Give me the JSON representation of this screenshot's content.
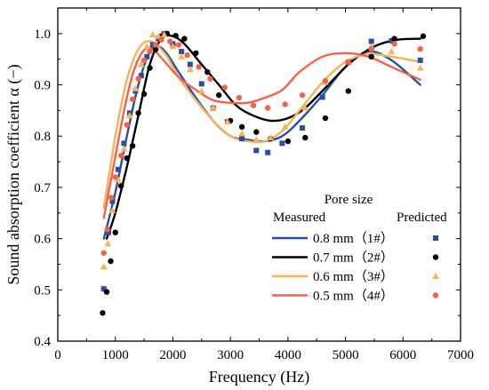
{
  "chart_data": {
    "type": "line",
    "title": "",
    "xlabel": "Frequency (Hz)",
    "ylabel": "Sound absorption coefficient α (−)",
    "xlim": [
      0,
      7000
    ],
    "ylim": [
      0.4,
      1.05
    ],
    "xticks": [
      0,
      1000,
      2000,
      3000,
      4000,
      5000,
      6000,
      7000
    ],
    "yticks": [
      0.4,
      0.5,
      0.6,
      0.7,
      0.8,
      0.9,
      1.0
    ],
    "xtick_labels": [
      "0",
      "1000",
      "2000",
      "3000",
      "4000",
      "5000",
      "6000",
      "7000"
    ],
    "ytick_labels": [
      "0.4",
      "0.5",
      "0.6",
      "0.7",
      "0.8",
      "0.9",
      "1.0"
    ],
    "grid": false,
    "legend": {
      "placement": "bottom-right",
      "title": "Pore size",
      "measured_header": "Measured",
      "predicted_header": "Predicted"
    },
    "series": [
      {
        "name": "0.8 mm（1#）",
        "color": "#2a4ea3",
        "marker": "square",
        "curve": [
          [
            800,
            0.6
          ],
          [
            1000,
            0.69
          ],
          [
            1200,
            0.8
          ],
          [
            1400,
            0.9
          ],
          [
            1600,
            0.965
          ],
          [
            1750,
            0.975
          ],
          [
            1900,
            0.96
          ],
          [
            2100,
            0.925
          ],
          [
            2400,
            0.875
          ],
          [
            2700,
            0.83
          ],
          [
            3000,
            0.8
          ],
          [
            3300,
            0.793
          ],
          [
            3600,
            0.79
          ],
          [
            3900,
            0.8
          ],
          [
            4200,
            0.83
          ],
          [
            4600,
            0.88
          ],
          [
            5000,
            0.935
          ],
          [
            5400,
            0.965
          ],
          [
            5800,
            0.948
          ],
          [
            6300,
            0.9
          ]
        ],
        "points": [
          [
            800,
            0.502
          ],
          [
            880,
            0.612
          ],
          [
            950,
            0.673
          ],
          [
            1050,
            0.735
          ],
          [
            1150,
            0.786
          ],
          [
            1250,
            0.845
          ],
          [
            1350,
            0.888
          ],
          [
            1450,
            0.918
          ],
          [
            1550,
            0.955
          ],
          [
            1650,
            0.978
          ],
          [
            1750,
            0.99
          ],
          [
            1850,
            1.0
          ],
          [
            2000,
            0.98
          ],
          [
            2150,
            0.965
          ],
          [
            2300,
            0.94
          ],
          [
            2500,
            0.902
          ],
          [
            2700,
            0.855
          ],
          [
            2950,
            0.828
          ],
          [
            3200,
            0.795
          ],
          [
            3450,
            0.772
          ],
          [
            3650,
            0.768
          ],
          [
            3900,
            0.786
          ],
          [
            4250,
            0.816
          ],
          [
            4600,
            0.876
          ],
          [
            5050,
            0.944
          ],
          [
            5450,
            0.985
          ],
          [
            5800,
            0.986
          ],
          [
            6300,
            0.948
          ]
        ]
      },
      {
        "name": "0.7 mm（2#）",
        "color": "#000000",
        "marker": "circle",
        "curve": [
          [
            850,
            0.6
          ],
          [
            1000,
            0.65
          ],
          [
            1200,
            0.74
          ],
          [
            1400,
            0.84
          ],
          [
            1600,
            0.94
          ],
          [
            1800,
            0.99
          ],
          [
            2000,
            0.995
          ],
          [
            2200,
            0.98
          ],
          [
            2500,
            0.94
          ],
          [
            2800,
            0.9
          ],
          [
            3100,
            0.86
          ],
          [
            3400,
            0.84
          ],
          [
            3700,
            0.83
          ],
          [
            4000,
            0.835
          ],
          [
            4300,
            0.855
          ],
          [
            4700,
            0.9
          ],
          [
            5100,
            0.945
          ],
          [
            5500,
            0.975
          ],
          [
            5900,
            0.988
          ],
          [
            6300,
            0.99
          ]
        ],
        "points": [
          [
            780,
            0.455
          ],
          [
            850,
            0.496
          ],
          [
            920,
            0.556
          ],
          [
            1000,
            0.612
          ],
          [
            1100,
            0.703
          ],
          [
            1200,
            0.757
          ],
          [
            1300,
            0.781
          ],
          [
            1400,
            0.845
          ],
          [
            1500,
            0.882
          ],
          [
            1600,
            0.933
          ],
          [
            1700,
            0.969
          ],
          [
            1800,
            0.995
          ],
          [
            1900,
            1.0
          ],
          [
            2050,
            0.996
          ],
          [
            2200,
            0.99
          ],
          [
            2400,
            0.962
          ],
          [
            2600,
            0.925
          ],
          [
            2800,
            0.88
          ],
          [
            3000,
            0.83
          ],
          [
            3200,
            0.818
          ],
          [
            3450,
            0.808
          ],
          [
            3700,
            0.795
          ],
          [
            4000,
            0.79
          ],
          [
            4300,
            0.797
          ],
          [
            4650,
            0.835
          ],
          [
            5050,
            0.888
          ],
          [
            5450,
            0.955
          ],
          [
            5850,
            0.99
          ],
          [
            6350,
            0.995
          ]
        ]
      },
      {
        "name": "0.6 mm（3#）",
        "color": "#f5b35a",
        "marker": "triangle",
        "curve": [
          [
            800,
            0.66
          ],
          [
            900,
            0.73
          ],
          [
            1000,
            0.8
          ],
          [
            1100,
            0.86
          ],
          [
            1200,
            0.91
          ],
          [
            1300,
            0.945
          ],
          [
            1400,
            0.97
          ],
          [
            1500,
            0.983
          ],
          [
            1600,
            0.985
          ],
          [
            1700,
            0.98
          ],
          [
            1900,
            0.955
          ],
          [
            2100,
            0.915
          ],
          [
            2400,
            0.87
          ],
          [
            2700,
            0.83
          ],
          [
            3000,
            0.8
          ],
          [
            3300,
            0.79
          ],
          [
            3600,
            0.79
          ],
          [
            3900,
            0.81
          ],
          [
            4200,
            0.85
          ],
          [
            4600,
            0.905
          ],
          [
            5000,
            0.945
          ],
          [
            5400,
            0.96
          ],
          [
            5800,
            0.955
          ],
          [
            6300,
            0.945
          ]
        ],
        "points": [
          [
            800,
            0.545
          ],
          [
            870,
            0.59
          ],
          [
            950,
            0.655
          ],
          [
            1050,
            0.715
          ],
          [
            1150,
            0.775
          ],
          [
            1250,
            0.84
          ],
          [
            1350,
            0.893
          ],
          [
            1450,
            0.94
          ],
          [
            1550,
            0.975
          ],
          [
            1650,
            0.998
          ],
          [
            1750,
            0.995
          ],
          [
            1850,
            0.998
          ],
          [
            2000,
            0.975
          ],
          [
            2150,
            0.955
          ],
          [
            2300,
            0.93
          ],
          [
            2500,
            0.888
          ],
          [
            2700,
            0.856
          ],
          [
            2950,
            0.828
          ],
          [
            3200,
            0.805
          ],
          [
            3450,
            0.793
          ],
          [
            3700,
            0.797
          ],
          [
            3950,
            0.818
          ],
          [
            4300,
            0.855
          ],
          [
            4650,
            0.905
          ],
          [
            5050,
            0.946
          ],
          [
            5450,
            0.975
          ],
          [
            5800,
            0.965
          ],
          [
            6300,
            0.933
          ]
        ]
      },
      {
        "name": "0.5 mm（4#）",
        "color": "#f0644a",
        "marker": "circle",
        "curve": [
          [
            800,
            0.64
          ],
          [
            900,
            0.7
          ],
          [
            1000,
            0.76
          ],
          [
            1100,
            0.82
          ],
          [
            1200,
            0.875
          ],
          [
            1300,
            0.92
          ],
          [
            1400,
            0.95
          ],
          [
            1500,
            0.968
          ],
          [
            1600,
            0.972
          ],
          [
            1700,
            0.965
          ],
          [
            1900,
            0.94
          ],
          [
            2100,
            0.915
          ],
          [
            2400,
            0.89
          ],
          [
            2700,
            0.87
          ],
          [
            3000,
            0.865
          ],
          [
            3300,
            0.865
          ],
          [
            3600,
            0.875
          ],
          [
            3900,
            0.89
          ],
          [
            4200,
            0.925
          ],
          [
            4600,
            0.955
          ],
          [
            5000,
            0.962
          ],
          [
            5400,
            0.955
          ],
          [
            5800,
            0.935
          ],
          [
            6300,
            0.91
          ]
        ],
        "points": [
          [
            800,
            0.572
          ],
          [
            860,
            0.618
          ],
          [
            930,
            0.68
          ],
          [
            1000,
            0.72
          ],
          [
            1100,
            0.762
          ],
          [
            1200,
            0.822
          ],
          [
            1300,
            0.872
          ],
          [
            1400,
            0.912
          ],
          [
            1500,
            0.948
          ],
          [
            1600,
            0.965
          ],
          [
            1700,
            0.978
          ],
          [
            1800,
            0.988
          ],
          [
            1950,
            0.985
          ],
          [
            2100,
            0.978
          ],
          [
            2250,
            0.958
          ],
          [
            2450,
            0.935
          ],
          [
            2650,
            0.912
          ],
          [
            2900,
            0.895
          ],
          [
            3150,
            0.875
          ],
          [
            3400,
            0.86
          ],
          [
            3650,
            0.855
          ],
          [
            3950,
            0.862
          ],
          [
            4250,
            0.88
          ],
          [
            4650,
            0.908
          ],
          [
            5050,
            0.944
          ],
          [
            5450,
            0.97
          ],
          [
            5850,
            0.98
          ],
          [
            6300,
            0.97
          ]
        ]
      }
    ]
  }
}
